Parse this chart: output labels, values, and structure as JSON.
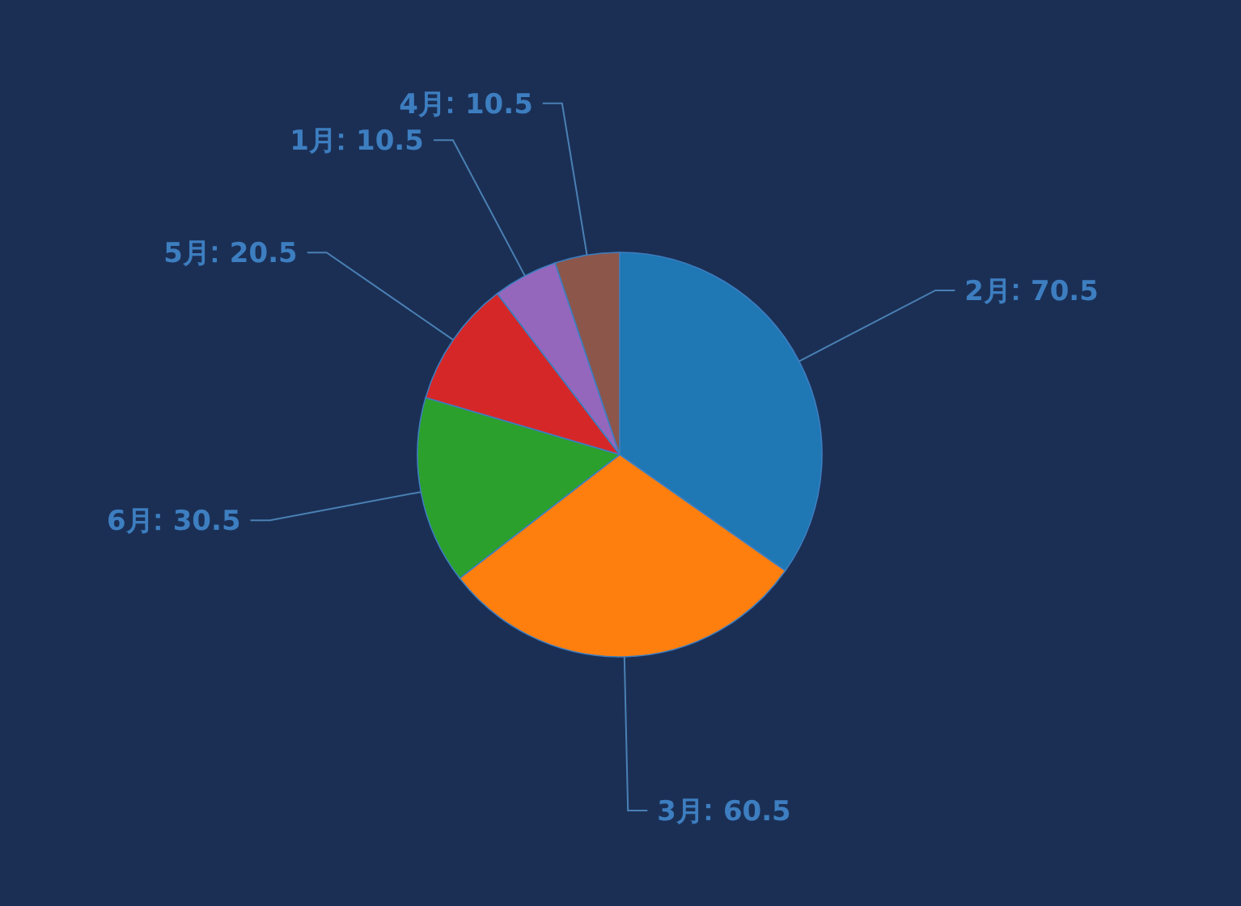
{
  "chart_data": {
    "type": "pie",
    "categories": [
      "2月",
      "3月",
      "6月",
      "5月",
      "1月",
      "4月"
    ],
    "values": [
      70.5,
      60.5,
      30.5,
      20.5,
      10.5,
      10.5
    ],
    "colors": [
      "#1f77b4",
      "#ff7f0e",
      "#2ca02c",
      "#d62728",
      "#9467bd",
      "#8c564b"
    ],
    "data_labels": true
  }
}
